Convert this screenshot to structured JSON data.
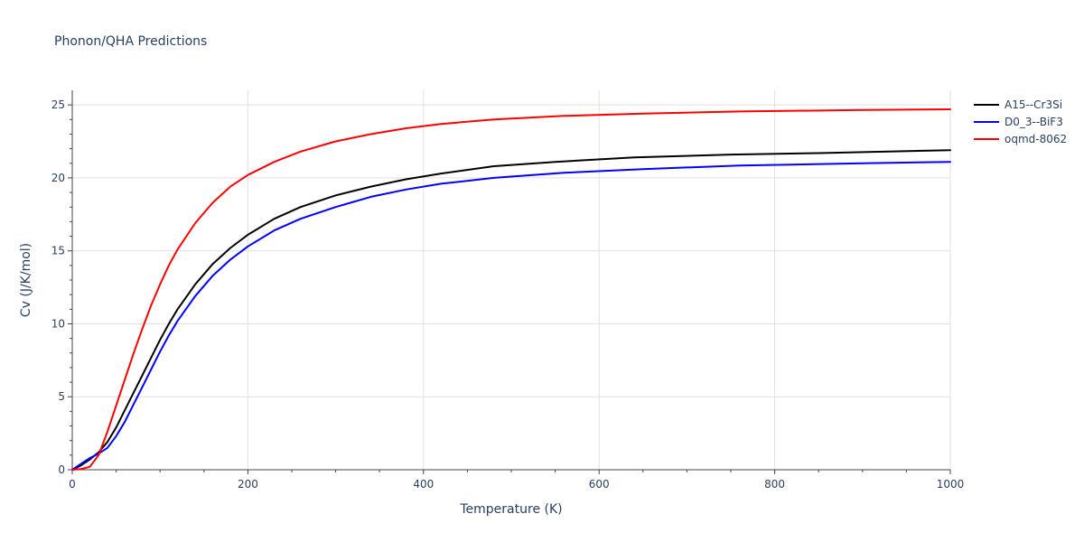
{
  "chart_data": {
    "type": "line",
    "title": "Phonon/QHA Predictions",
    "xlabel": "Temperature (K)",
    "ylabel": "Cv (J/K/mol)",
    "xlim": [
      0,
      1000
    ],
    "ylim": [
      0,
      26
    ],
    "x_ticks": [
      0,
      200,
      400,
      600,
      800,
      1000
    ],
    "y_ticks": [
      0,
      5,
      10,
      15,
      20,
      25
    ],
    "grid": true,
    "legend_position": "top-right",
    "series": [
      {
        "name": "A15--Cr3Si",
        "color": "#000000",
        "x": [
          0,
          10,
          20,
          30,
          40,
          50,
          60,
          70,
          80,
          90,
          100,
          110,
          120,
          140,
          160,
          180,
          200,
          230,
          260,
          300,
          340,
          380,
          420,
          480,
          550,
          640,
          750,
          850,
          1000
        ],
        "y": [
          0,
          0.3,
          0.7,
          1.2,
          1.9,
          2.9,
          4.1,
          5.3,
          6.5,
          7.7,
          8.9,
          10.0,
          11.0,
          12.7,
          14.1,
          15.2,
          16.1,
          17.2,
          18.0,
          18.8,
          19.4,
          19.9,
          20.3,
          20.8,
          21.1,
          21.4,
          21.6,
          21.7,
          21.9
        ]
      },
      {
        "name": "D0_3--BiF3",
        "color": "#0000ff",
        "x": [
          0,
          10,
          20,
          30,
          40,
          50,
          60,
          70,
          80,
          90,
          100,
          110,
          120,
          140,
          160,
          180,
          200,
          230,
          260,
          300,
          340,
          380,
          420,
          480,
          560,
          650,
          760,
          900,
          1000
        ],
        "y": [
          0,
          0.4,
          0.8,
          1.1,
          1.5,
          2.3,
          3.3,
          4.5,
          5.7,
          6.9,
          8.1,
          9.2,
          10.2,
          11.9,
          13.3,
          14.4,
          15.3,
          16.4,
          17.2,
          18.0,
          18.7,
          19.2,
          19.6,
          20.0,
          20.35,
          20.6,
          20.85,
          21.0,
          21.1
        ]
      },
      {
        "name": "oqmd-8062",
        "color": "#ff0000",
        "x": [
          0,
          10,
          20,
          30,
          40,
          50,
          60,
          70,
          80,
          90,
          100,
          110,
          120,
          140,
          160,
          180,
          200,
          230,
          260,
          300,
          340,
          380,
          420,
          480,
          560,
          650,
          760,
          900,
          1000
        ],
        "y": [
          0,
          0.05,
          0.2,
          1.0,
          2.6,
          4.4,
          6.2,
          8.0,
          9.7,
          11.3,
          12.7,
          14.0,
          15.1,
          16.9,
          18.3,
          19.4,
          20.2,
          21.1,
          21.8,
          22.5,
          23.0,
          23.4,
          23.7,
          24.0,
          24.25,
          24.4,
          24.55,
          24.65,
          24.7
        ]
      }
    ]
  }
}
